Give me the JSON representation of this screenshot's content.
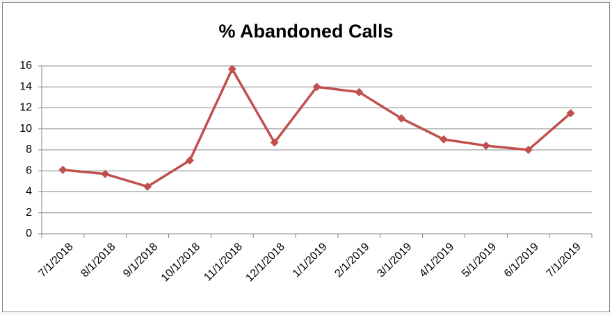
{
  "chart_data": {
    "type": "line",
    "title": "% Abandoned Calls",
    "categories": [
      "7/1/2018",
      "8/1/2018",
      "9/1/2018",
      "10/1/2018",
      "11/1/2018",
      "12/1/2018",
      "1/1/2019",
      "2/1/2019",
      "3/1/2019",
      "4/1/2019",
      "5/1/2019",
      "6/1/2019",
      "7/1/2019"
    ],
    "values": [
      6.1,
      5.7,
      4.5,
      7.0,
      15.7,
      8.7,
      14.0,
      13.5,
      11.0,
      9.0,
      8.4,
      8.0,
      11.5
    ],
    "color": "#c0504d",
    "ylim": [
      0,
      16
    ],
    "yticks": [
      0,
      2,
      4,
      6,
      8,
      10,
      12,
      14,
      16
    ],
    "grid": true
  }
}
